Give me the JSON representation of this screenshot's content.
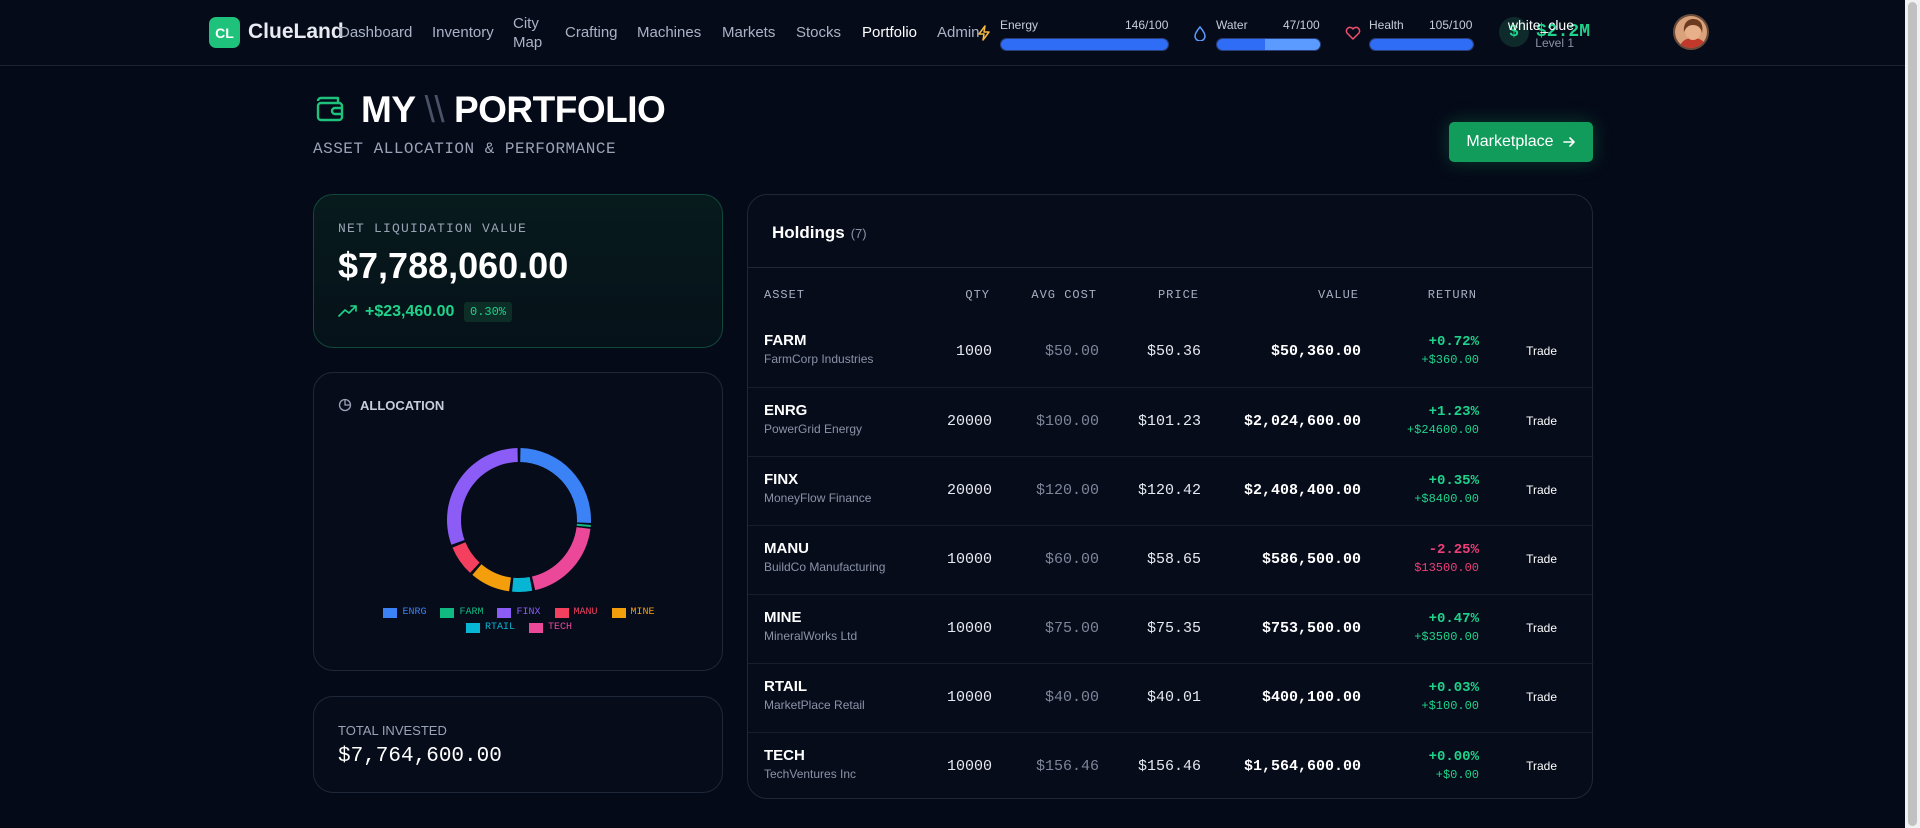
{
  "app": {
    "logo_badge": "CL",
    "logo_text": "ClueLand"
  },
  "nav": {
    "items": [
      "Dashboard",
      "Inventory",
      "City Map",
      "Crafting",
      "Machines",
      "Markets",
      "Stocks",
      "Portfolio",
      "Admin"
    ],
    "active": "Portfolio"
  },
  "stats": {
    "energy": {
      "label": "Energy",
      "value": "146/100",
      "level": 1.0
    },
    "water": {
      "label": "Water",
      "value": "47/100",
      "level": 0.47
    },
    "health": {
      "label": "Health",
      "value": "105/100",
      "level": 1.0
    }
  },
  "user": {
    "money": "$2.2M",
    "name": "white_clue",
    "level": "Level 1"
  },
  "header": {
    "title_left": "MY",
    "title_sep": "\\\\",
    "title_right": "PORTFOLIO",
    "subtitle": "ASSET ALLOCATION & PERFORMANCE",
    "marketplace_button": "Marketplace"
  },
  "net_liquidation": {
    "label": "NET LIQUIDATION VALUE",
    "value": "$7,788,060.00",
    "change": "+$23,460.00",
    "change_pct": "0.30%"
  },
  "allocation": {
    "title": "ALLOCATION",
    "legend": [
      {
        "name": "ENRG",
        "color": "#3b82f6"
      },
      {
        "name": "FARM",
        "color": "#10b981"
      },
      {
        "name": "FINX",
        "color": "#8b5cf6"
      },
      {
        "name": "MANU",
        "color": "#f43f5e"
      },
      {
        "name": "MINE",
        "color": "#f59e0b"
      },
      {
        "name": "RTAIL",
        "color": "#06b6d4"
      },
      {
        "name": "TECH",
        "color": "#ec4899"
      }
    ]
  },
  "chart_data": {
    "type": "pie",
    "categories": [
      "ENRG",
      "FARM",
      "FINX",
      "MANU",
      "MINE",
      "RTAIL",
      "TECH"
    ],
    "values": [
      2024600,
      50360,
      2408400,
      586500,
      753500,
      400100,
      1564600
    ]
  },
  "total_invested": {
    "label": "TOTAL INVESTED",
    "value": "$7,764,600.00"
  },
  "holdings": {
    "title": "Holdings",
    "count": "(7)",
    "columns": [
      "ASSET",
      "QTY",
      "AVG COST",
      "PRICE",
      "VALUE",
      "RETURN"
    ],
    "trade_label": "Trade",
    "rows": [
      {
        "symbol": "FARM",
        "name": "FarmCorp Industries",
        "qty": "1000",
        "avg": "$50.00",
        "price": "$50.36",
        "value": "$50,360.00",
        "ret_pct": "+0.72%",
        "ret_amt": "+$360.00",
        "positive": true
      },
      {
        "symbol": "ENRG",
        "name": "PowerGrid Energy",
        "qty": "20000",
        "avg": "$100.00",
        "price": "$101.23",
        "value": "$2,024,600.00",
        "ret_pct": "+1.23%",
        "ret_amt": "+$24600.00",
        "positive": true
      },
      {
        "symbol": "FINX",
        "name": "MoneyFlow Finance",
        "qty": "20000",
        "avg": "$120.00",
        "price": "$120.42",
        "value": "$2,408,400.00",
        "ret_pct": "+0.35%",
        "ret_amt": "+$8400.00",
        "positive": true
      },
      {
        "symbol": "MANU",
        "name": "BuildCo Manufacturing",
        "qty": "10000",
        "avg": "$60.00",
        "price": "$58.65",
        "value": "$586,500.00",
        "ret_pct": "-2.25%",
        "ret_amt": "$13500.00",
        "positive": false
      },
      {
        "symbol": "MINE",
        "name": "MineralWorks Ltd",
        "qty": "10000",
        "avg": "$75.00",
        "price": "$75.35",
        "value": "$753,500.00",
        "ret_pct": "+0.47%",
        "ret_amt": "+$3500.00",
        "positive": true
      },
      {
        "symbol": "RTAIL",
        "name": "MarketPlace Retail",
        "qty": "10000",
        "avg": "$40.00",
        "price": "$40.01",
        "value": "$400,100.00",
        "ret_pct": "+0.03%",
        "ret_amt": "+$100.00",
        "positive": true
      },
      {
        "symbol": "TECH",
        "name": "TechVentures Inc",
        "qty": "10000",
        "avg": "$156.46",
        "price": "$156.46",
        "value": "$1,564,600.00",
        "ret_pct": "+0.00%",
        "ret_amt": "+$0.00",
        "positive": true
      }
    ]
  },
  "icons": {
    "wallet": "wallet-icon",
    "energy": "bolt-icon",
    "water": "droplet-icon",
    "health": "heart-icon",
    "money": "dollar-icon",
    "trend": "trending-up-icon",
    "allocation": "pie-chart-icon",
    "arrow": "arrow-right-icon"
  }
}
